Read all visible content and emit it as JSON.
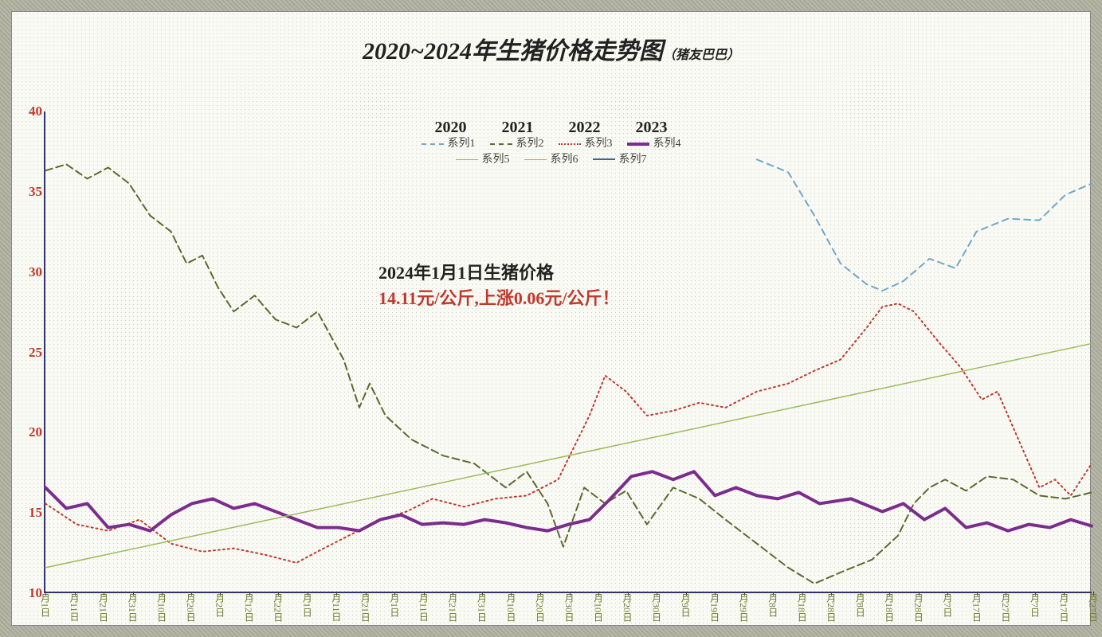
{
  "title_main": "2020~2024年生猪价格走势图",
  "title_sub": "（猪友巴巴）",
  "years": [
    "2020",
    "2021",
    "2022",
    "2023"
  ],
  "legend_row1": [
    {
      "label": "系列1",
      "color": "#6fa8c9",
      "dash": "8,6",
      "width": 2
    },
    {
      "label": "系列2",
      "color": "#5a6b2f",
      "dash": "9,5",
      "width": 2
    },
    {
      "label": "系列3",
      "color": "#c0392b",
      "dash": "2,4",
      "width": 2
    },
    {
      "label": "系列4",
      "color": "#7b2d8e",
      "dash": "0",
      "width": 4
    }
  ],
  "legend_row2": [
    {
      "label": "系列5",
      "color": "#9bbb59",
      "dash": "0",
      "width": 1.5
    },
    {
      "label": "系列6",
      "color": "#d99a5a",
      "dash": "0",
      "width": 1.5
    },
    {
      "label": "系列7",
      "color": "#3a6a8a",
      "dash": "0",
      "width": 2
    }
  ],
  "annotation": {
    "line1": "2024年1月1日生猪价格",
    "line2": "14.11元/公斤,上涨0.06元/公斤！"
  },
  "chart": {
    "type": "line",
    "ylim": [
      10,
      40
    ],
    "ytick_step": 5,
    "yticks": [
      10,
      15,
      20,
      25,
      30,
      35,
      40
    ],
    "xticks": [
      "月1日",
      "月11日",
      "月21日",
      "月31日",
      "月10日",
      "月20日",
      "月2日",
      "月12日",
      "月22日",
      "月1日",
      "月11日",
      "月21日",
      "月1日",
      "月11日",
      "月21日",
      "月31日",
      "月10日",
      "月20日",
      "月30日",
      "月10日",
      "月20日",
      "月30日",
      "月9日",
      "月19日",
      "月29日",
      "月8日",
      "月18日",
      "月28日",
      "月8日",
      "月18日",
      "月28日",
      "月7日",
      "月17日",
      "月27日",
      "月7日",
      "月17日",
      "月27日"
    ],
    "background_color": "#fafaf5",
    "grid_color": "#d0d0c8",
    "axis_color": "#333366",
    "tick_label_color_y": "#c0392b",
    "tick_label_color_x": "#6a7a2a",
    "title_fontsize": 30,
    "label_fontsize": 17,
    "series": {
      "s1_blue_dashed": {
        "color": "#6fa8c9",
        "dash": "8,6",
        "width": 2,
        "data": [
          [
            0.68,
            37
          ],
          [
            0.71,
            36.2
          ],
          [
            0.735,
            33.5
          ],
          [
            0.76,
            30.5
          ],
          [
            0.785,
            29.2
          ],
          [
            0.8,
            28.8
          ],
          [
            0.82,
            29.4
          ],
          [
            0.845,
            30.8
          ],
          [
            0.87,
            30.2
          ],
          [
            0.89,
            32.5
          ],
          [
            0.92,
            33.3
          ],
          [
            0.95,
            33.2
          ],
          [
            0.975,
            34.8
          ],
          [
            1.0,
            35.5
          ]
        ]
      },
      "s2_olive_dashed": {
        "color": "#5a6b2f",
        "dash": "9,5",
        "width": 2,
        "data": [
          [
            0,
            36.3
          ],
          [
            0.02,
            36.7
          ],
          [
            0.04,
            35.8
          ],
          [
            0.06,
            36.5
          ],
          [
            0.08,
            35.5
          ],
          [
            0.1,
            33.5
          ],
          [
            0.12,
            32.5
          ],
          [
            0.135,
            30.5
          ],
          [
            0.15,
            31
          ],
          [
            0.165,
            29
          ],
          [
            0.18,
            27.5
          ],
          [
            0.2,
            28.5
          ],
          [
            0.22,
            27
          ],
          [
            0.24,
            26.5
          ],
          [
            0.26,
            27.5
          ],
          [
            0.285,
            24.5
          ],
          [
            0.3,
            21.5
          ],
          [
            0.31,
            23
          ],
          [
            0.325,
            21
          ],
          [
            0.35,
            19.5
          ],
          [
            0.38,
            18.5
          ],
          [
            0.41,
            18
          ],
          [
            0.44,
            16.5
          ],
          [
            0.46,
            17.5
          ],
          [
            0.48,
            15.5
          ],
          [
            0.495,
            12.8
          ],
          [
            0.515,
            16.5
          ],
          [
            0.535,
            15.5
          ],
          [
            0.555,
            16.3
          ],
          [
            0.575,
            14.2
          ],
          [
            0.6,
            16.5
          ],
          [
            0.625,
            15.8
          ],
          [
            0.65,
            14.5
          ],
          [
            0.68,
            13
          ],
          [
            0.71,
            11.5
          ],
          [
            0.735,
            10.5
          ],
          [
            0.76,
            11.2
          ],
          [
            0.79,
            12
          ],
          [
            0.815,
            13.5
          ],
          [
            0.83,
            15.5
          ],
          [
            0.845,
            16.5
          ],
          [
            0.86,
            17
          ],
          [
            0.88,
            16.3
          ],
          [
            0.9,
            17.2
          ],
          [
            0.925,
            17
          ],
          [
            0.95,
            16
          ],
          [
            0.975,
            15.8
          ],
          [
            1.0,
            16.2
          ]
        ]
      },
      "s3_red_dotted": {
        "color": "#c0392b",
        "dash": "2,4",
        "width": 2,
        "data": [
          [
            0,
            15.5
          ],
          [
            0.03,
            14.2
          ],
          [
            0.06,
            13.8
          ],
          [
            0.09,
            14.5
          ],
          [
            0.12,
            13
          ],
          [
            0.15,
            12.5
          ],
          [
            0.18,
            12.7
          ],
          [
            0.21,
            12.3
          ],
          [
            0.24,
            11.8
          ],
          [
            0.26,
            12.5
          ],
          [
            0.29,
            13.5
          ],
          [
            0.32,
            14.5
          ],
          [
            0.345,
            15
          ],
          [
            0.37,
            15.8
          ],
          [
            0.4,
            15.3
          ],
          [
            0.43,
            15.8
          ],
          [
            0.46,
            16
          ],
          [
            0.49,
            17
          ],
          [
            0.52,
            21
          ],
          [
            0.535,
            23.5
          ],
          [
            0.555,
            22.5
          ],
          [
            0.575,
            21
          ],
          [
            0.6,
            21.3
          ],
          [
            0.625,
            21.8
          ],
          [
            0.65,
            21.5
          ],
          [
            0.68,
            22.5
          ],
          [
            0.71,
            23
          ],
          [
            0.735,
            23.8
          ],
          [
            0.76,
            24.5
          ],
          [
            0.785,
            26.5
          ],
          [
            0.8,
            27.8
          ],
          [
            0.815,
            28
          ],
          [
            0.83,
            27.5
          ],
          [
            0.855,
            25.5
          ],
          [
            0.875,
            24
          ],
          [
            0.895,
            22
          ],
          [
            0.91,
            22.5
          ],
          [
            0.93,
            19.5
          ],
          [
            0.95,
            16.5
          ],
          [
            0.965,
            17
          ],
          [
            0.98,
            16
          ],
          [
            1.0,
            18
          ]
        ]
      },
      "s4_purple_solid": {
        "color": "#7b2d8e",
        "dash": "0",
        "width": 4,
        "data": [
          [
            0,
            16.5
          ],
          [
            0.02,
            15.2
          ],
          [
            0.04,
            15.5
          ],
          [
            0.06,
            14
          ],
          [
            0.08,
            14.2
          ],
          [
            0.1,
            13.8
          ],
          [
            0.12,
            14.8
          ],
          [
            0.14,
            15.5
          ],
          [
            0.16,
            15.8
          ],
          [
            0.18,
            15.2
          ],
          [
            0.2,
            15.5
          ],
          [
            0.22,
            15
          ],
          [
            0.24,
            14.5
          ],
          [
            0.26,
            14
          ],
          [
            0.28,
            14
          ],
          [
            0.3,
            13.8
          ],
          [
            0.32,
            14.5
          ],
          [
            0.34,
            14.8
          ],
          [
            0.36,
            14.2
          ],
          [
            0.38,
            14.3
          ],
          [
            0.4,
            14.2
          ],
          [
            0.42,
            14.5
          ],
          [
            0.44,
            14.3
          ],
          [
            0.46,
            14
          ],
          [
            0.48,
            13.8
          ],
          [
            0.5,
            14.2
          ],
          [
            0.52,
            14.5
          ],
          [
            0.54,
            15.8
          ],
          [
            0.56,
            17.2
          ],
          [
            0.58,
            17.5
          ],
          [
            0.6,
            17
          ],
          [
            0.62,
            17.5
          ],
          [
            0.64,
            16
          ],
          [
            0.66,
            16.5
          ],
          [
            0.68,
            16
          ],
          [
            0.7,
            15.8
          ],
          [
            0.72,
            16.2
          ],
          [
            0.74,
            15.5
          ],
          [
            0.77,
            15.8
          ],
          [
            0.8,
            15
          ],
          [
            0.82,
            15.5
          ],
          [
            0.84,
            14.5
          ],
          [
            0.86,
            15.2
          ],
          [
            0.88,
            14
          ],
          [
            0.9,
            14.3
          ],
          [
            0.92,
            13.8
          ],
          [
            0.94,
            14.2
          ],
          [
            0.96,
            14
          ],
          [
            0.98,
            14.5
          ],
          [
            1.0,
            14.1
          ]
        ]
      },
      "s5_trend_light": {
        "color": "#9bbb59",
        "dash": "0",
        "width": 1.5,
        "data": [
          [
            0,
            11.5
          ],
          [
            1.0,
            25.5
          ]
        ]
      }
    }
  }
}
